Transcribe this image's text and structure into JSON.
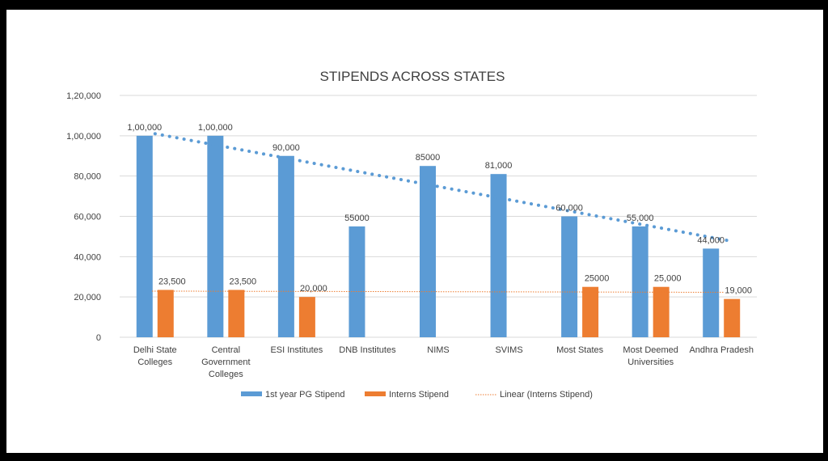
{
  "colors": {
    "pg": "#5b9bd5",
    "interns": "#ed7d31",
    "trend_pg": "#5b9bd5",
    "trend_interns": "#ed7d31",
    "grid": "#d9d9d9",
    "text": "#404040"
  },
  "chart_data": {
    "type": "bar",
    "title": "STIPENDS ACROSS STATES",
    "xlabel": "",
    "ylabel": "",
    "ylim": [
      0,
      120000
    ],
    "yticks": [
      {
        "value": 0,
        "label": "0"
      },
      {
        "value": 20000,
        "label": "20,000"
      },
      {
        "value": 40000,
        "label": "40,000"
      },
      {
        "value": 60000,
        "label": "60,000"
      },
      {
        "value": 80000,
        "label": "80,000"
      },
      {
        "value": 100000,
        "label": "1,00,000"
      },
      {
        "value": 120000,
        "label": "1,20,000"
      }
    ],
    "grid": true,
    "legend_position": "bottom",
    "categories": [
      [
        "Delhi State",
        "Colleges"
      ],
      [
        "Central",
        "Government",
        "Colleges"
      ],
      [
        "ESI Institutes"
      ],
      [
        "DNB Institutes"
      ],
      [
        "NIMS"
      ],
      [
        "SVIMS"
      ],
      [
        "Most States"
      ],
      [
        "Most Deemed",
        "Universities"
      ],
      [
        "Andhra Pradesh"
      ]
    ],
    "series": [
      {
        "name": "1st year PG Stipend",
        "values": [
          100000,
          100000,
          90000,
          55000,
          85000,
          81000,
          60000,
          55000,
          44000
        ],
        "labels": [
          "1,00,000",
          "1,00,000",
          "90,000",
          "55000",
          "85000",
          "81,000",
          "60,000",
          "55,000",
          "44,000"
        ]
      },
      {
        "name": "Interns Stipend",
        "values": [
          23500,
          23500,
          20000,
          null,
          null,
          null,
          25000,
          25000,
          19000
        ],
        "labels": [
          "23,500",
          "23,500",
          "20,000",
          "",
          "",
          "",
          "25000",
          "25,000",
          "19,000"
        ]
      }
    ],
    "trendlines": [
      {
        "series": 0,
        "from": 101000,
        "to": 48000,
        "style": "dotted-thick",
        "in_legend": false
      },
      {
        "series": 1,
        "name": "Linear (Interns Stipend)",
        "from": 22900,
        "to": 22300,
        "style": "dotted-thin",
        "in_legend": true
      }
    ]
  }
}
